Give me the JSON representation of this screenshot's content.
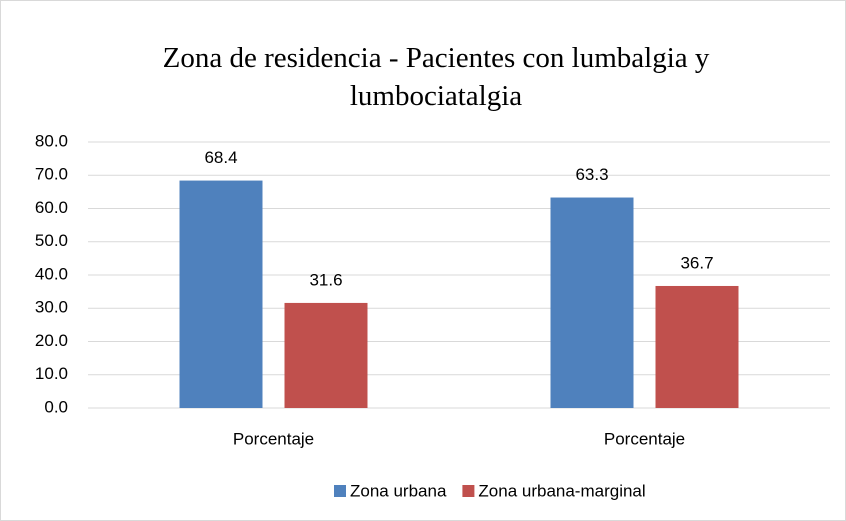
{
  "chart_data": {
    "type": "bar",
    "title": "Zona  de residencia - Pacientes con lumbalgia y lumbociatalgia",
    "categories": [
      "Porcentaje",
      "Porcentaje"
    ],
    "series": [
      {
        "name": "Zona urbana",
        "color": "#4f81bd",
        "values": [
          68.4,
          63.3
        ]
      },
      {
        "name": "Zona urbana-marginal",
        "color": "#c0504d",
        "values": [
          31.6,
          36.7
        ]
      }
    ],
    "ylim": [
      0,
      80
    ],
    "yticks": [
      {
        "value": 0,
        "label": "0.0"
      },
      {
        "value": 10,
        "label": "10.0"
      },
      {
        "value": 20,
        "label": "20.0"
      },
      {
        "value": 30,
        "label": "30.0"
      },
      {
        "value": 40,
        "label": "40.0"
      },
      {
        "value": 50,
        "label": "50.0"
      },
      {
        "value": 60,
        "label": "60.0"
      },
      {
        "value": 70,
        "label": "70.0"
      },
      {
        "value": 80,
        "label": "80.0"
      }
    ],
    "grid": true,
    "legend": "bottom"
  }
}
